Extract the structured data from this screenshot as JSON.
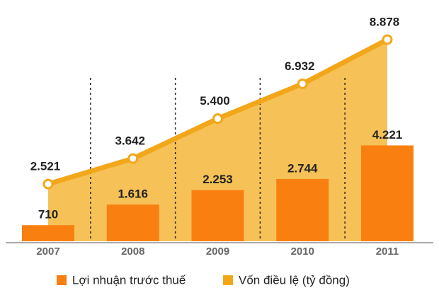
{
  "chart_data": {
    "type": "bar",
    "categories": [
      "2007",
      "2008",
      "2009",
      "2010",
      "2011"
    ],
    "series": [
      {
        "name": "Lợi nhuận trước thuế",
        "type": "bar",
        "color": "#f98010",
        "values": [
          710,
          1616,
          2253,
          2744,
          4221
        ],
        "value_labels": [
          "710",
          "1.616",
          "2.253",
          "2.744",
          "4.221"
        ]
      },
      {
        "name": "Vốn điều lệ (tỷ đồng)",
        "type": "line",
        "color": "#f2a71b",
        "area_color": "#f6c157",
        "values": [
          2521,
          3642,
          5400,
          6932,
          8878
        ],
        "value_labels": [
          "2.521",
          "3.642",
          "5.400",
          "6.932",
          "8.878"
        ]
      }
    ]
  }
}
